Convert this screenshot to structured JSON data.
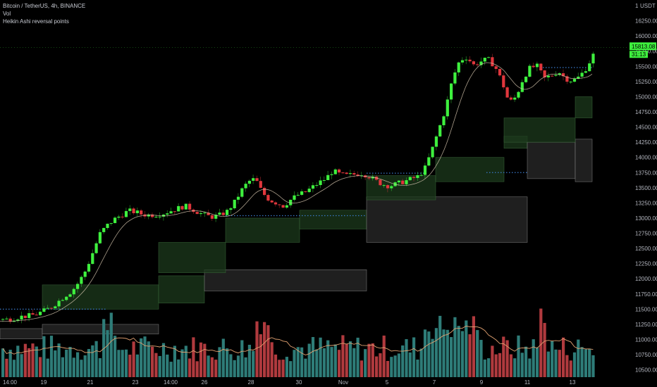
{
  "legend": {
    "symbol": "Bitcoin / TetherUS, 4h, BINANCE",
    "volume": "Vol",
    "indicator": "Heikin Ashi reversal points"
  },
  "price_axis": {
    "currency": "USDT",
    "currency_prefix": "1",
    "current_price": "15813.08",
    "countdown": "31:13"
  },
  "colors": {
    "up": "#3ef03e",
    "down": "#e0363c",
    "vol_up": "#2e7c78",
    "vol_down": "#b03a3e",
    "ma": "#e0a070",
    "price_tag": "#3ef03e",
    "band_green": "#1c3a1c",
    "band_gray": "#2a2a2a",
    "dots": "#3a78c8"
  },
  "chart_data": {
    "type": "candlestick",
    "symbol": "BTC/USDT",
    "timeframe": "4h",
    "y_ticks": [
      10500,
      10750,
      11000,
      11250,
      11500,
      11750,
      12000,
      12250,
      12500,
      12750,
      13000,
      13250,
      13500,
      13750,
      14000,
      14250,
      14500,
      14750,
      15000,
      15250,
      15500,
      15750,
      16000,
      16250
    ],
    "ylim": [
      10380,
      16500
    ],
    "x_ticks": [
      "14:00",
      "19",
      "21",
      "23",
      "14:00",
      "26",
      "28",
      "30",
      "Nov",
      "5",
      "7",
      "9",
      "11",
      "13"
    ],
    "price_path": [
      [
        0,
        11330
      ],
      [
        10,
        11330
      ],
      [
        20,
        11360
      ],
      [
        30,
        11380
      ],
      [
        40,
        11390
      ],
      [
        50,
        11420
      ],
      [
        60,
        11470
      ],
      [
        70,
        11530
      ],
      [
        80,
        11620
      ],
      [
        90,
        11720
      ],
      [
        100,
        11800
      ],
      [
        110,
        11950
      ],
      [
        120,
        12150
      ],
      [
        130,
        12450
      ],
      [
        140,
        12750
      ],
      [
        150,
        12880
      ],
      [
        160,
        12980
      ],
      [
        170,
        13050
      ],
      [
        180,
        13120
      ],
      [
        190,
        13100
      ],
      [
        200,
        13060
      ],
      [
        210,
        13050
      ],
      [
        220,
        13060
      ],
      [
        230,
        13080
      ],
      [
        240,
        13120
      ],
      [
        250,
        13160
      ],
      [
        260,
        13200
      ],
      [
        270,
        13150
      ],
      [
        280,
        13090
      ],
      [
        290,
        13040
      ],
      [
        300,
        13020
      ],
      [
        310,
        13050
      ],
      [
        320,
        13110
      ],
      [
        330,
        13250
      ],
      [
        340,
        13450
      ],
      [
        350,
        13600
      ],
      [
        360,
        13650
      ],
      [
        370,
        13420
      ],
      [
        380,
        13300
      ],
      [
        390,
        13250
      ],
      [
        400,
        13200
      ],
      [
        410,
        13300
      ],
      [
        420,
        13380
      ],
      [
        430,
        13420
      ],
      [
        440,
        13500
      ],
      [
        450,
        13580
      ],
      [
        460,
        13650
      ],
      [
        470,
        13780
      ],
      [
        480,
        13720
      ],
      [
        490,
        13700
      ],
      [
        500,
        13720
      ],
      [
        510,
        13740
      ],
      [
        520,
        13700
      ],
      [
        530,
        13620
      ],
      [
        540,
        13560
      ],
      [
        550,
        13530
      ],
      [
        560,
        13560
      ],
      [
        570,
        13600
      ],
      [
        580,
        13640
      ],
      [
        590,
        13680
      ],
      [
        600,
        13800
      ],
      [
        610,
        14100
      ],
      [
        620,
        14450
      ],
      [
        630,
        14800
      ],
      [
        640,
        15300
      ],
      [
        650,
        15600
      ],
      [
        660,
        15650
      ],
      [
        670,
        15520
      ],
      [
        680,
        15580
      ],
      [
        690,
        15620
      ],
      [
        700,
        15500
      ],
      [
        710,
        15250
      ],
      [
        720,
        14900
      ],
      [
        730,
        15000
      ],
      [
        740,
        15300
      ],
      [
        750,
        15480
      ],
      [
        760,
        15500
      ],
      [
        770,
        15300
      ],
      [
        780,
        15350
      ],
      [
        790,
        15420
      ],
      [
        800,
        15300
      ],
      [
        810,
        15260
      ],
      [
        820,
        15330
      ],
      [
        830,
        15480
      ],
      [
        840,
        15700
      ]
    ],
    "last_close": 15813.08,
    "volume_max": 1500
  }
}
